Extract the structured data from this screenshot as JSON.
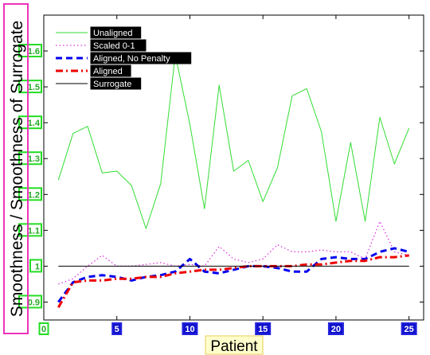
{
  "chart_data": {
    "type": "line",
    "title": "",
    "xlabel": "Patient",
    "ylabel": "Smoothness / Smoothness of Surrogate",
    "xlim": [
      0,
      26
    ],
    "ylim": [
      0.85,
      1.7
    ],
    "xticks": [
      0,
      5,
      10,
      15,
      20,
      25
    ],
    "yticks": [
      0.9,
      1.0,
      1.1,
      1.2,
      1.3,
      1.4,
      1.5,
      1.6
    ],
    "ytick_labels": [
      "0.9",
      "1",
      "1.1",
      "1.2",
      "1.3",
      "1.4",
      "1.5",
      "1.6"
    ],
    "xtick_labels": [
      "0",
      "5",
      "10",
      "15",
      "20",
      "25"
    ],
    "grid": false,
    "legend_position": "top-left",
    "series": [
      {
        "name": "Unaligned",
        "color": "#33dd33",
        "style": "solid",
        "x": [
          1,
          2,
          3,
          4,
          5,
          6,
          7,
          8,
          9,
          10,
          11,
          12,
          13,
          14,
          15,
          16,
          17,
          18,
          19,
          20,
          21,
          22,
          23,
          24,
          25
        ],
        "values": [
          1.24,
          1.37,
          1.39,
          1.26,
          1.265,
          1.225,
          1.105,
          1.23,
          1.59,
          1.395,
          1.16,
          1.505,
          1.265,
          1.295,
          1.18,
          1.275,
          1.475,
          1.495,
          1.375,
          1.125,
          1.345,
          1.125,
          1.415,
          1.285,
          1.385
        ]
      },
      {
        "name": "Scaled 0-1",
        "color": "#dd33dd",
        "style": "dotted",
        "x": [
          1,
          2,
          3,
          4,
          5,
          6,
          7,
          8,
          9,
          10,
          11,
          12,
          13,
          14,
          15,
          16,
          17,
          18,
          19,
          20,
          21,
          22,
          23,
          24,
          25
        ],
        "values": [
          0.95,
          0.965,
          1.0,
          1.03,
          1.0,
          1.0,
          1.005,
          1.01,
          1.0,
          1.005,
          1.0,
          1.055,
          1.02,
          1.01,
          1.02,
          1.06,
          1.04,
          1.04,
          1.045,
          1.04,
          1.04,
          1.02,
          1.125,
          1.04,
          1.03
        ]
      },
      {
        "name": "Aligned, No Penalty",
        "color": "#0000ee",
        "style": "dashed",
        "x": [
          1,
          2,
          3,
          4,
          5,
          6,
          7,
          8,
          9,
          10,
          11,
          12,
          13,
          14,
          15,
          16,
          17,
          18,
          19,
          20,
          21,
          22,
          23,
          24,
          25
        ],
        "values": [
          0.9,
          0.955,
          0.97,
          0.975,
          0.97,
          0.96,
          0.97,
          0.975,
          0.985,
          1.02,
          0.985,
          0.98,
          0.99,
          1.0,
          1.0,
          0.995,
          0.985,
          0.985,
          1.02,
          1.025,
          1.02,
          1.02,
          1.04,
          1.05,
          1.04
        ]
      },
      {
        "name": "Aligned",
        "color": "#ee0000",
        "style": "dashdot",
        "x": [
          1,
          2,
          3,
          4,
          5,
          6,
          7,
          8,
          9,
          10,
          11,
          12,
          13,
          14,
          15,
          16,
          17,
          18,
          19,
          20,
          21,
          22,
          23,
          24,
          25
        ],
        "values": [
          0.885,
          0.955,
          0.96,
          0.96,
          0.965,
          0.965,
          0.97,
          0.97,
          0.98,
          0.985,
          0.99,
          0.99,
          0.995,
          1.0,
          1.0,
          1.0,
          1.0,
          1.005,
          1.005,
          1.01,
          1.015,
          1.015,
          1.025,
          1.025,
          1.03
        ]
      },
      {
        "name": "Surrogate",
        "color": "#000000",
        "style": "solid",
        "x": [
          1,
          25
        ],
        "values": [
          1.0,
          1.0
        ]
      }
    ]
  }
}
